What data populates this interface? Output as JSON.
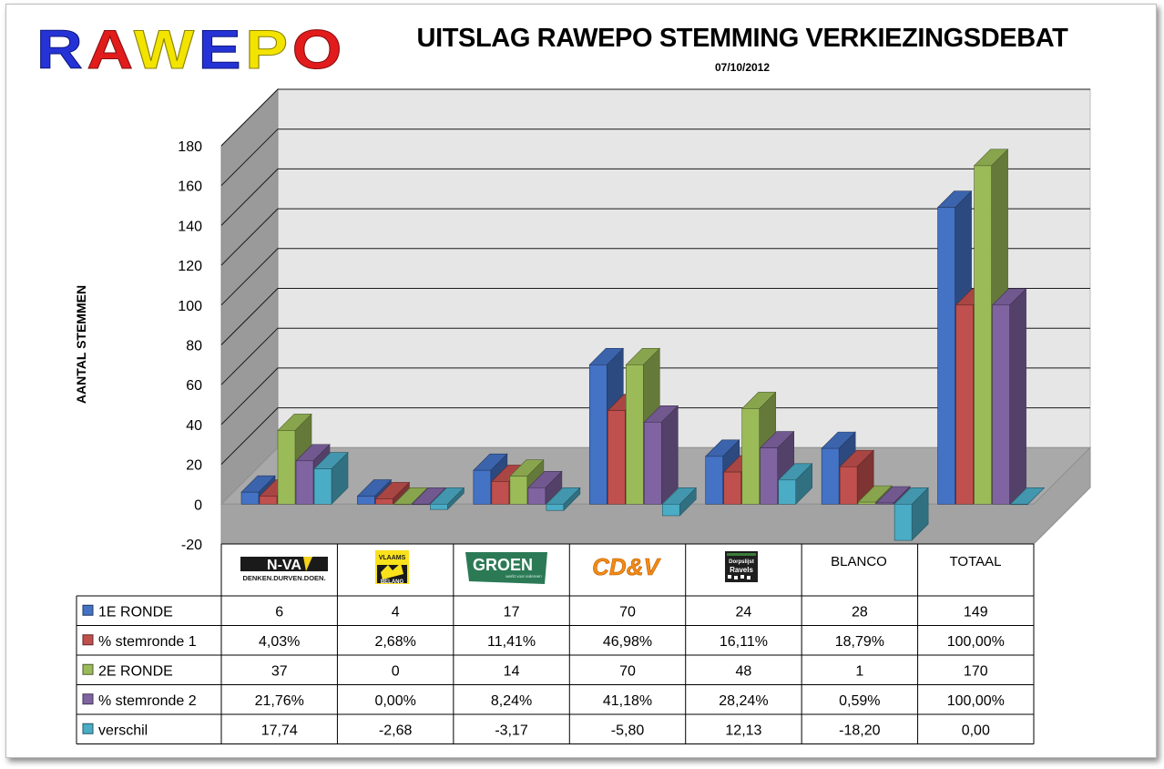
{
  "header": {
    "logo_text": "RAWEPO",
    "title": "UITSLAG RAWEPO STEMMING VERKIEZINGSDEBAT",
    "date": "07/10/2012"
  },
  "chart_data": {
    "type": "bar",
    "title": "UITSLAG RAWEPO STEMMING VERKIEZINGSDEBAT",
    "subtitle": "07/10/2012",
    "ylabel": "AANTAL STEMMEN",
    "xlabel": "",
    "ylim": [
      -20,
      180
    ],
    "yticks": [
      -20,
      0,
      20,
      40,
      60,
      80,
      100,
      120,
      140,
      160,
      180
    ],
    "grid": true,
    "categories": [
      "N-VA",
      "VLAAMS BELANG",
      "GROEN",
      "CD&V",
      "Dorpslijst Ravels",
      "BLANCO",
      "TOTAAL"
    ],
    "category_logos": {
      "nva": {
        "name": "N-VA",
        "tagline": "DENKEN.DURVEN.DOEN."
      },
      "vb": {
        "top": "VLAAMS",
        "bottom": "BELANG"
      },
      "groen": {
        "name": "GROEN",
        "tagline": "werkt voor iedereen"
      },
      "cdv": {
        "name": "CD&V"
      },
      "dorpslijst": {
        "line1": "Dorpslijst",
        "line2": "Ravels"
      }
    },
    "series": [
      {
        "name": "1E RONDE",
        "color": "#4472c4",
        "values": [
          6,
          4,
          17,
          70,
          24,
          28,
          149
        ],
        "labels": [
          "6",
          "4",
          "17",
          "70",
          "24",
          "28",
          "149"
        ]
      },
      {
        "name": "% stemronde 1",
        "color": "#c0504d",
        "values": [
          4.03,
          2.68,
          11.41,
          46.98,
          16.11,
          18.79,
          100.0
        ],
        "labels": [
          "4,03%",
          "2,68%",
          "11,41%",
          "46,98%",
          "16,11%",
          "18,79%",
          "100,00%"
        ]
      },
      {
        "name": "2E RONDE",
        "color": "#9bbb59",
        "values": [
          37,
          0,
          14,
          70,
          48,
          1,
          170
        ],
        "labels": [
          "37",
          "0",
          "14",
          "70",
          "48",
          "1",
          "170"
        ]
      },
      {
        "name": "% stemronde 2",
        "color": "#8064a2",
        "values": [
          21.76,
          0.0,
          8.24,
          41.18,
          28.24,
          0.59,
          100.0
        ],
        "labels": [
          "21,76%",
          "0,00%",
          "8,24%",
          "41,18%",
          "28,24%",
          "0,59%",
          "100,00%"
        ]
      },
      {
        "name": "verschil",
        "color": "#4bacc6",
        "values": [
          17.74,
          -2.68,
          -3.17,
          -5.8,
          12.13,
          -18.2,
          0.0
        ],
        "labels": [
          "17,74",
          "-2,68",
          "-3,17",
          "-5,80",
          "12,13",
          "-18,20",
          "0,00"
        ]
      }
    ]
  }
}
